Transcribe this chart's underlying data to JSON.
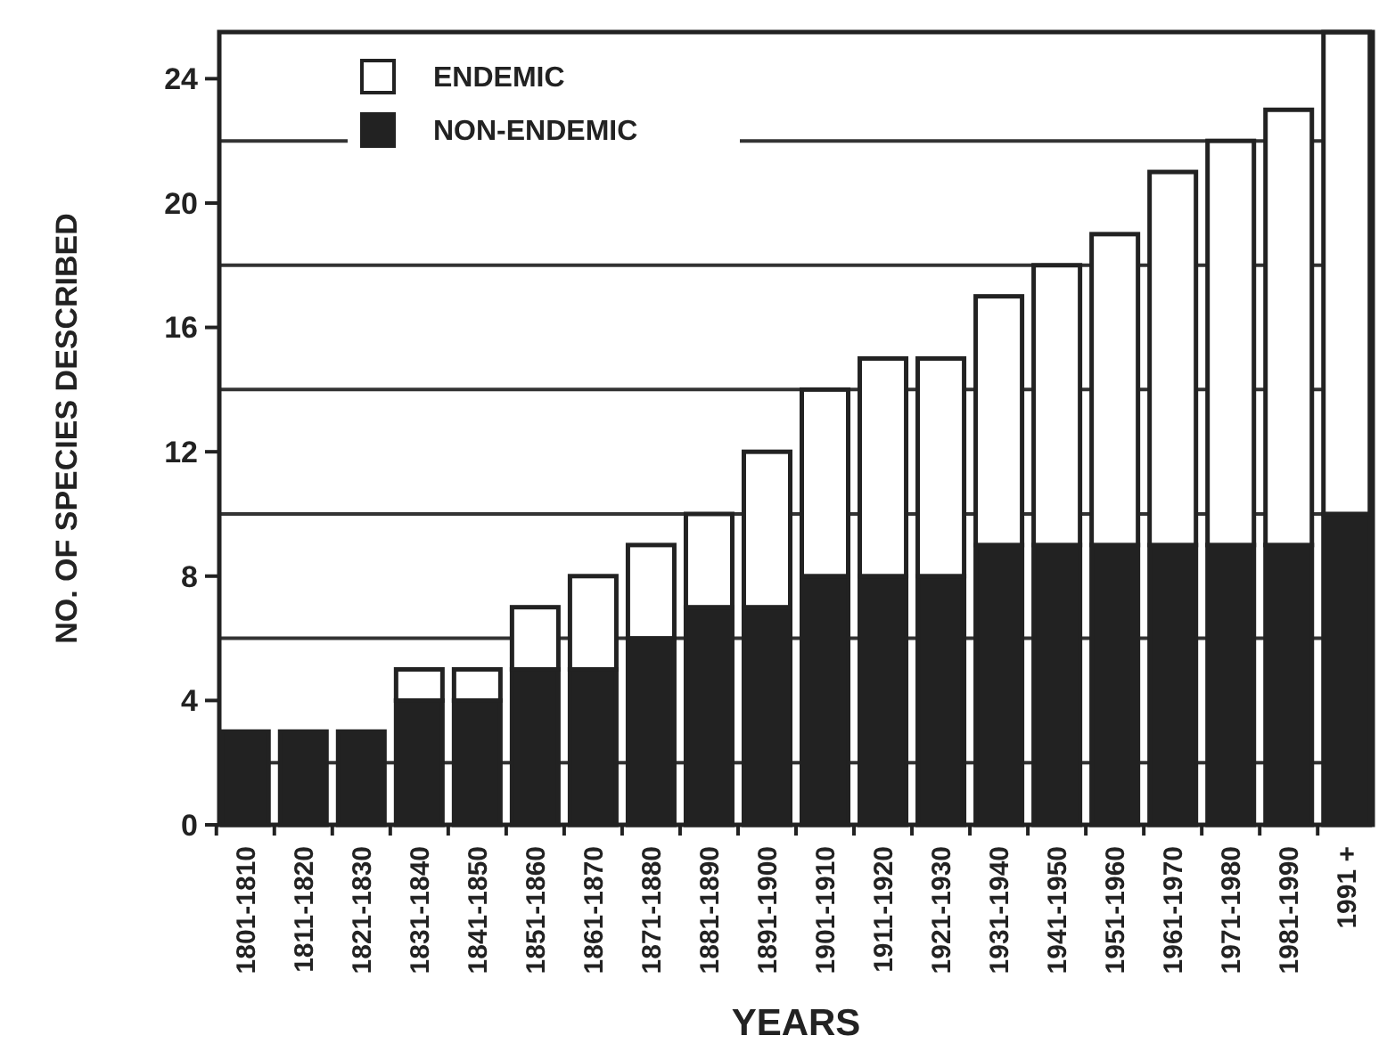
{
  "chart_data": {
    "type": "bar",
    "stacked": true,
    "xlabel": "YEARS",
    "ylabel": "NO. OF SPECIES DESCRIBED",
    "categories": [
      "1801-1810",
      "1811-1820",
      "1821-1830",
      "1831-1840",
      "1841-1850",
      "1851-1860",
      "1861-1870",
      "1871-1880",
      "1881-1890",
      "1891-1900",
      "1901-1910",
      "1911-1920",
      "1921-1930",
      "1931-1940",
      "1941-1950",
      "1951-1960",
      "1961-1970",
      "1971-1980",
      "1981-1990",
      "1991 +"
    ],
    "series": [
      {
        "name": "NON-ENDEMIC",
        "color": "#222222",
        "values": [
          3,
          3,
          3,
          4,
          4,
          5,
          5,
          6,
          7,
          7,
          8,
          8,
          8,
          9,
          9,
          9,
          9,
          9,
          9,
          10
        ]
      },
      {
        "name": "ENDEMIC",
        "color": "#ffffff",
        "values": [
          0,
          0,
          0,
          1,
          1,
          2,
          3,
          3,
          3,
          5,
          6,
          7,
          7,
          8,
          9,
          10,
          12,
          13,
          14,
          15.5
        ]
      }
    ],
    "ylim": [
      0,
      25.5
    ],
    "yticks": [
      0,
      4,
      8,
      12,
      16,
      20,
      24
    ],
    "ref_lines": [
      {
        "axis": "y",
        "value": 2,
        "color": "#333333"
      },
      {
        "axis": "y",
        "value": 6,
        "color": "#333333"
      },
      {
        "axis": "y",
        "value": 10,
        "color": "#333333"
      },
      {
        "axis": "y",
        "value": 14,
        "color": "#333333"
      },
      {
        "axis": "y",
        "value": 18,
        "color": "#333333"
      },
      {
        "axis": "y",
        "value": 22,
        "color": "#333333"
      }
    ],
    "legend": "top left"
  }
}
